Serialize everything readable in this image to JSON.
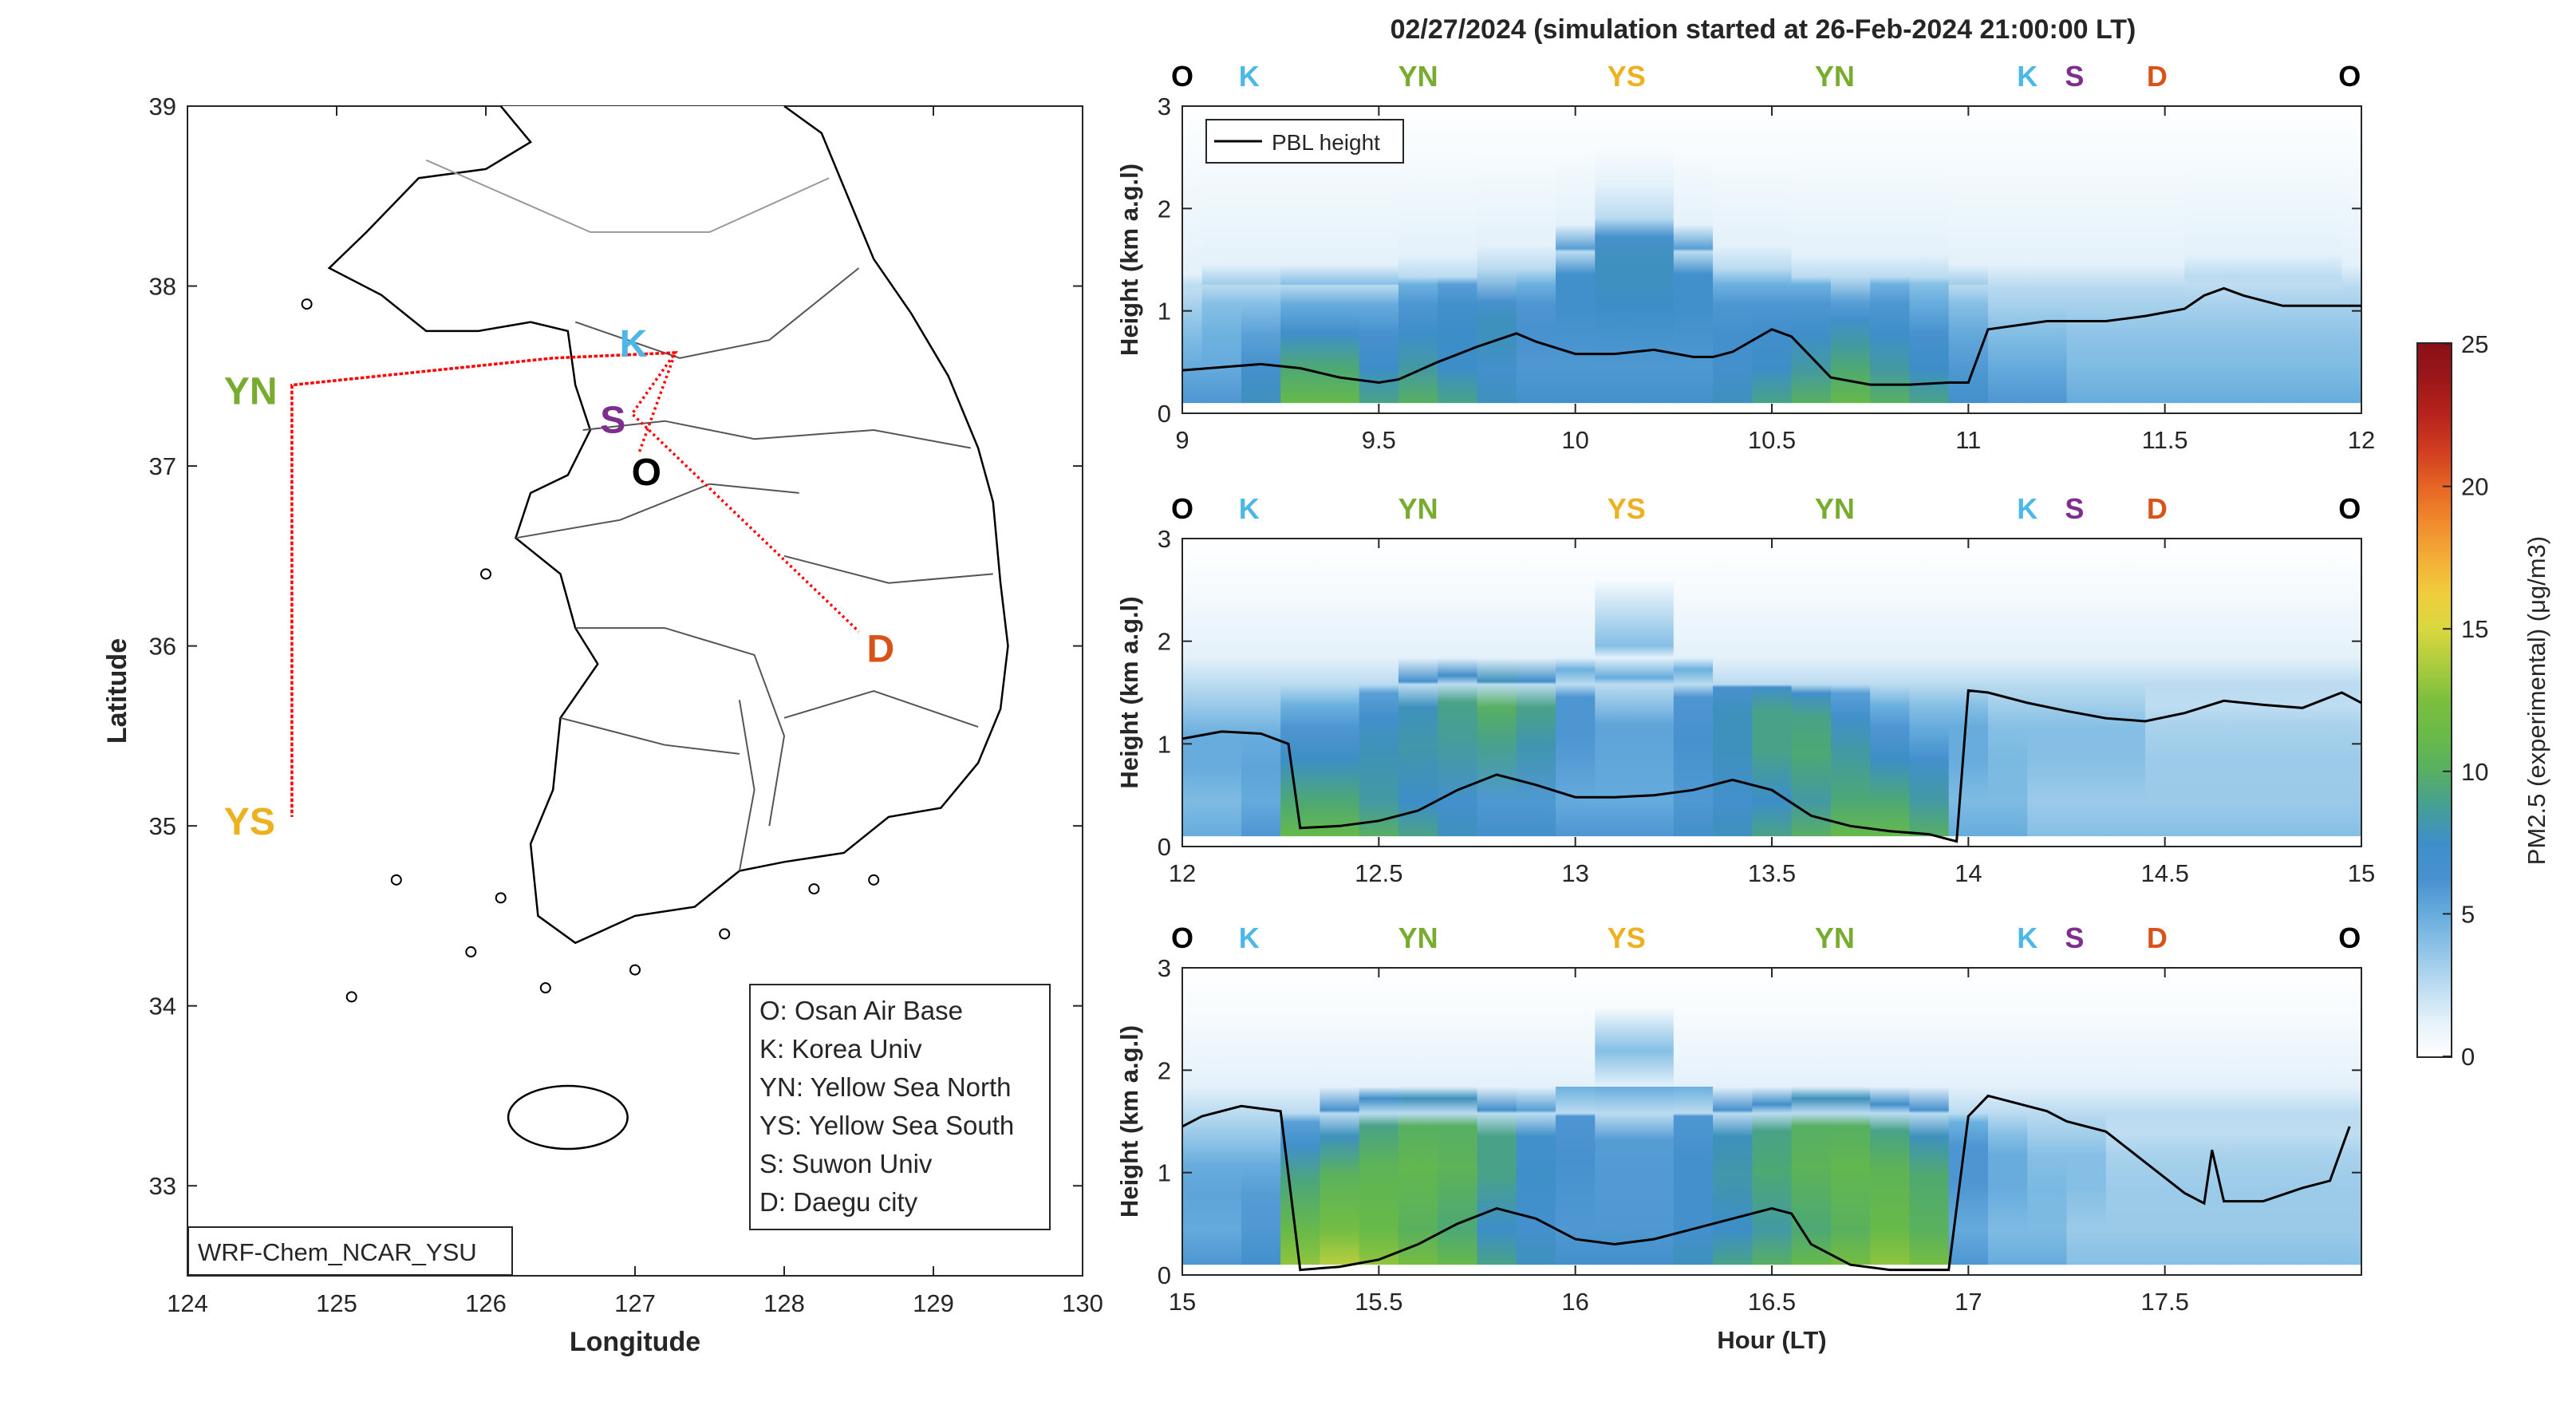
{
  "figure": {
    "title": "02/27/2024 (simulation started at 26-Feb-2024 21:00:00 LT)"
  },
  "colors": {
    "O": "#000000",
    "K": "#4db8e8",
    "YN": "#77ac30",
    "YS": "#edb120",
    "S": "#7e2f8e",
    "D": "#d95319",
    "route": "#ff0000",
    "pbl": "#000000"
  },
  "map": {
    "xlabel": "Longitude",
    "ylabel": "Latitude",
    "xticks": [
      "124",
      "125",
      "126",
      "127",
      "128",
      "129",
      "130"
    ],
    "yticks": [
      "39",
      "38",
      "37",
      "36",
      "35",
      "34",
      "33"
    ],
    "xlim": [
      124,
      130
    ],
    "ylim": [
      32.5,
      39
    ],
    "model_label": "WRF-Chem_NCAR_YSU",
    "sites": [
      {
        "code": "O",
        "lon": 127.03,
        "lat": 37.08
      },
      {
        "code": "K",
        "lon": 127.03,
        "lat": 37.59
      },
      {
        "code": "YN",
        "lon": 124.7,
        "lat": 37.45
      },
      {
        "code": "YS",
        "lon": 124.7,
        "lat": 35.05
      },
      {
        "code": "S",
        "lon": 126.98,
        "lat": 37.29
      },
      {
        "code": "D",
        "lon": 128.5,
        "lat": 36.08
      }
    ],
    "route": [
      [
        127.03,
        37.08
      ],
      [
        127.27,
        37.63
      ],
      [
        126.45,
        37.6
      ],
      [
        124.7,
        37.45
      ],
      [
        124.7,
        35.05
      ],
      [
        124.7,
        37.45
      ],
      [
        126.45,
        37.6
      ],
      [
        127.27,
        37.63
      ],
      [
        126.98,
        37.29
      ],
      [
        128.5,
        36.08
      ]
    ],
    "legend": [
      "O: Osan Air Base",
      "K: Korea Univ",
      "YN: Yellow Sea North",
      "YS: Yellow Sea South",
      "S: Suwon Univ",
      "D: Daegu city"
    ]
  },
  "chart_data": [
    {
      "type": "heatmap",
      "variable": "PM2.5",
      "ylabel": "Height (km a.g.l)",
      "xlabel": "",
      "xlim": [
        9,
        12
      ],
      "ylim": [
        0,
        3
      ],
      "xticks": [
        "9",
        "9.5",
        "10",
        "10.5",
        "11",
        "11.5",
        "12"
      ],
      "yticks": [
        "0",
        "1",
        "2",
        "3"
      ],
      "legend": [
        "PBL height"
      ],
      "legend_position": "top-left",
      "site_labels": [
        {
          "code": "O",
          "x": 9.0
        },
        {
          "code": "K",
          "x": 9.17
        },
        {
          "code": "YN",
          "x": 9.6
        },
        {
          "code": "YS",
          "x": 10.13
        },
        {
          "code": "YN",
          "x": 10.66
        },
        {
          "code": "K",
          "x": 11.15
        },
        {
          "code": "S",
          "x": 11.27
        },
        {
          "code": "D",
          "x": 11.48
        },
        {
          "code": "O",
          "x": 11.97
        }
      ],
      "pbl_height": {
        "x": [
          9.0,
          9.1,
          9.2,
          9.3,
          9.4,
          9.5,
          9.55,
          9.65,
          9.75,
          9.85,
          9.9,
          10.0,
          10.1,
          10.2,
          10.3,
          10.35,
          10.4,
          10.5,
          10.55,
          10.6,
          10.65,
          10.75,
          10.85,
          10.95,
          11.0,
          11.05,
          11.2,
          11.35,
          11.45,
          11.55,
          11.6,
          11.65,
          11.7,
          11.8,
          11.9,
          12.0
        ],
        "y": [
          0.42,
          0.45,
          0.48,
          0.44,
          0.35,
          0.3,
          0.33,
          0.5,
          0.65,
          0.78,
          0.7,
          0.58,
          0.58,
          0.62,
          0.55,
          0.55,
          0.6,
          0.82,
          0.75,
          0.55,
          0.35,
          0.28,
          0.28,
          0.3,
          0.3,
          0.82,
          0.9,
          0.9,
          0.95,
          1.02,
          1.15,
          1.22,
          1.15,
          1.05,
          1.05,
          1.05
        ]
      },
      "pm25_profile": {
        "x": [
          9.0,
          9.1,
          9.2,
          9.3,
          9.4,
          9.5,
          9.6,
          9.7,
          9.8,
          9.9,
          10.0,
          10.1,
          10.2,
          10.3,
          10.4,
          10.5,
          10.6,
          10.7,
          10.8,
          10.9,
          11.0,
          11.1,
          11.2,
          11.3,
          11.4,
          11.5,
          11.6,
          11.7,
          11.8,
          11.9,
          12.0
        ],
        "surface": [
          6,
          6,
          8,
          11,
          11,
          9,
          10,
          9,
          8,
          7,
          7,
          7,
          7,
          7,
          8,
          9,
          10,
          11,
          10,
          9,
          7,
          6,
          6,
          5,
          5,
          5,
          5,
          5,
          5,
          5,
          5
        ],
        "aloft_peak": [
          3,
          4,
          4,
          5,
          5,
          5,
          6,
          7,
          8,
          6,
          7,
          8,
          8,
          7,
          6,
          6,
          6,
          7,
          6,
          5,
          4,
          3,
          3,
          3,
          3,
          3,
          3,
          3,
          3,
          3,
          3
        ],
        "aloft_center_km": [
          1,
          1,
          1,
          1,
          1,
          1,
          1,
          1,
          0.85,
          1,
          1.3,
          1.4,
          1.4,
          1.3,
          1,
          1,
          1,
          0.85,
          1,
          1,
          1,
          1,
          1,
          1,
          1,
          1,
          1,
          1,
          1,
          1,
          1
        ],
        "top_km": [
          1.3,
          1.4,
          1.4,
          1.4,
          1.4,
          1.4,
          1.5,
          1.5,
          1.6,
          1.6,
          1.8,
          2.2,
          2.2,
          1.8,
          1.6,
          1.6,
          1.5,
          1.5,
          1.5,
          1.5,
          1.4,
          1.4,
          1.4,
          1.4,
          1.4,
          1.4,
          1.5,
          1.5,
          1.5,
          1.5,
          1.4
        ]
      }
    },
    {
      "type": "heatmap",
      "variable": "PM2.5",
      "ylabel": "Height (km a.g.l)",
      "xlabel": "",
      "xlim": [
        12,
        15
      ],
      "ylim": [
        0,
        3
      ],
      "xticks": [
        "12",
        "12.5",
        "13",
        "13.5",
        "14",
        "14.5",
        "15"
      ],
      "yticks": [
        "0",
        "1",
        "2",
        "3"
      ],
      "site_labels": [
        {
          "code": "O",
          "x": 12.0
        },
        {
          "code": "K",
          "x": 12.17
        },
        {
          "code": "YN",
          "x": 12.6
        },
        {
          "code": "YS",
          "x": 13.13
        },
        {
          "code": "YN",
          "x": 13.66
        },
        {
          "code": "K",
          "x": 14.15
        },
        {
          "code": "S",
          "x": 14.27
        },
        {
          "code": "D",
          "x": 14.48
        },
        {
          "code": "O",
          "x": 14.97
        }
      ],
      "pbl_height": {
        "x": [
          12.0,
          12.1,
          12.2,
          12.27,
          12.3,
          12.4,
          12.5,
          12.6,
          12.7,
          12.8,
          12.9,
          13.0,
          13.1,
          13.2,
          13.3,
          13.4,
          13.5,
          13.6,
          13.7,
          13.8,
          13.9,
          13.97,
          14.0,
          14.05,
          14.15,
          14.25,
          14.35,
          14.45,
          14.55,
          14.65,
          14.75,
          14.85,
          14.95,
          15.0
        ],
        "y": [
          1.05,
          1.12,
          1.1,
          1.0,
          0.18,
          0.2,
          0.25,
          0.35,
          0.55,
          0.7,
          0.6,
          0.48,
          0.48,
          0.5,
          0.55,
          0.65,
          0.55,
          0.3,
          0.2,
          0.15,
          0.12,
          0.05,
          1.52,
          1.5,
          1.4,
          1.32,
          1.25,
          1.22,
          1.3,
          1.42,
          1.38,
          1.35,
          1.5,
          1.4
        ]
      },
      "pm25_profile": {
        "x": [
          12.0,
          12.1,
          12.2,
          12.3,
          12.4,
          12.5,
          12.6,
          12.7,
          12.8,
          12.9,
          13.0,
          13.1,
          13.2,
          13.3,
          13.4,
          13.5,
          13.6,
          13.7,
          13.8,
          13.9,
          14.0,
          14.1,
          14.2,
          14.3,
          14.4,
          14.5,
          14.6,
          14.7,
          14.8,
          14.9,
          15.0
        ],
        "surface": [
          5,
          5,
          6,
          11,
          11,
          10,
          9,
          8,
          7,
          7,
          6,
          6,
          6,
          7,
          8,
          9,
          10,
          11,
          11,
          10,
          5,
          5,
          4,
          4,
          4,
          4,
          4,
          4,
          4,
          4,
          4
        ],
        "aloft_peak": [
          5,
          5,
          5,
          6,
          6,
          7,
          8,
          9,
          10,
          9,
          6,
          5,
          5,
          6,
          8,
          9,
          9,
          7,
          6,
          5,
          5,
          4,
          4,
          4,
          4,
          3,
          3,
          3,
          3,
          3,
          3
        ],
        "aloft_center_km": [
          1,
          1,
          1,
          1.1,
          1.1,
          1.2,
          1.3,
          1.35,
          1.3,
          1.3,
          1.4,
          1.6,
          1.6,
          1.4,
          1.25,
          1.25,
          1.2,
          1.2,
          1.1,
          1.1,
          1.1,
          1.1,
          1.1,
          1.1,
          1.1,
          1.1,
          1.1,
          1.1,
          1.1,
          1.1,
          1.1
        ]
      }
    },
    {
      "type": "heatmap",
      "variable": "PM2.5",
      "ylabel": "Height (km a.g.l)",
      "xlabel": "Hour (LT)",
      "xlim": [
        15,
        18
      ],
      "ylim": [
        0,
        3
      ],
      "xticks": [
        "15",
        "15.5",
        "16",
        "16.5",
        "17",
        "17.5"
      ],
      "yticks": [
        "0",
        "1",
        "2",
        "3"
      ],
      "site_labels": [
        {
          "code": "O",
          "x": 15.0
        },
        {
          "code": "K",
          "x": 15.17
        },
        {
          "code": "YN",
          "x": 15.6
        },
        {
          "code": "YS",
          "x": 16.13
        },
        {
          "code": "YN",
          "x": 16.66
        },
        {
          "code": "K",
          "x": 17.15
        },
        {
          "code": "S",
          "x": 17.27
        },
        {
          "code": "D",
          "x": 17.48
        },
        {
          "code": "O",
          "x": 17.97
        }
      ],
      "pbl_height": {
        "x": [
          15.0,
          15.05,
          15.15,
          15.25,
          15.3,
          15.4,
          15.5,
          15.6,
          15.7,
          15.8,
          15.9,
          16.0,
          16.1,
          16.2,
          16.3,
          16.4,
          16.5,
          16.55,
          16.6,
          16.65,
          16.7,
          16.8,
          16.9,
          16.95,
          17.0,
          17.05,
          17.1,
          17.2,
          17.25,
          17.35,
          17.45,
          17.55,
          17.6,
          17.62,
          17.65,
          17.75,
          17.85,
          17.92,
          17.97
        ],
        "y": [
          1.45,
          1.55,
          1.65,
          1.6,
          0.05,
          0.08,
          0.15,
          0.3,
          0.5,
          0.65,
          0.55,
          0.35,
          0.3,
          0.35,
          0.45,
          0.55,
          0.65,
          0.6,
          0.3,
          0.2,
          0.1,
          0.05,
          0.05,
          0.05,
          1.55,
          1.75,
          1.7,
          1.6,
          1.5,
          1.4,
          1.1,
          0.8,
          0.7,
          1.22,
          0.72,
          0.72,
          0.85,
          0.92,
          1.45
        ]
      },
      "pm25_profile": {
        "x": [
          15.0,
          15.1,
          15.2,
          15.3,
          15.4,
          15.5,
          15.6,
          15.7,
          15.8,
          15.9,
          16.0,
          16.1,
          16.2,
          16.3,
          16.4,
          16.5,
          16.6,
          16.7,
          16.8,
          16.9,
          17.0,
          17.1,
          17.2,
          17.3,
          17.4,
          17.5,
          17.6,
          17.7,
          17.8,
          17.9,
          17.97
        ],
        "surface": [
          6,
          6,
          7,
          13,
          14,
          13,
          12,
          11,
          9,
          8,
          7,
          7,
          7,
          8,
          9,
          10,
          11,
          12,
          13,
          12,
          6,
          5,
          5,
          4,
          4,
          4,
          4,
          4,
          4,
          4,
          4
        ],
        "aloft_peak": [
          5,
          5,
          5,
          7,
          8,
          9,
          10,
          10,
          9,
          7,
          6,
          5,
          5,
          6,
          8,
          9,
          10,
          10,
          9,
          8,
          6,
          5,
          4,
          4,
          3,
          3,
          3,
          3,
          3,
          3,
          3
        ],
        "aloft_center_km": [
          1,
          1,
          1,
          1.2,
          1.3,
          1.4,
          1.4,
          1.4,
          1.3,
          1.3,
          1.5,
          1.8,
          1.8,
          1.5,
          1.3,
          1.35,
          1.4,
          1.4,
          1.35,
          1.3,
          1.2,
          1.1,
          1.1,
          1.1,
          1.1,
          1.1,
          1.1,
          1.1,
          1.1,
          1.1,
          1.1
        ]
      }
    }
  ],
  "colorbar": {
    "label": "PM2.5 (experimental) (μg/m3)",
    "ticks": [
      "0",
      "5",
      "10",
      "15",
      "20",
      "25"
    ],
    "range": [
      0,
      25
    ],
    "colormap": [
      "#ffffff",
      "#dcedf8",
      "#a4cfeb",
      "#6fb3e0",
      "#4891cf",
      "#3c8ec7",
      "#4da873",
      "#65b94a",
      "#7bbf3e",
      "#b9cf3e",
      "#eedc3f",
      "#f4b63a",
      "#f08a2c",
      "#e35a22",
      "#c52a1e",
      "#a11919",
      "#8a1016"
    ]
  }
}
